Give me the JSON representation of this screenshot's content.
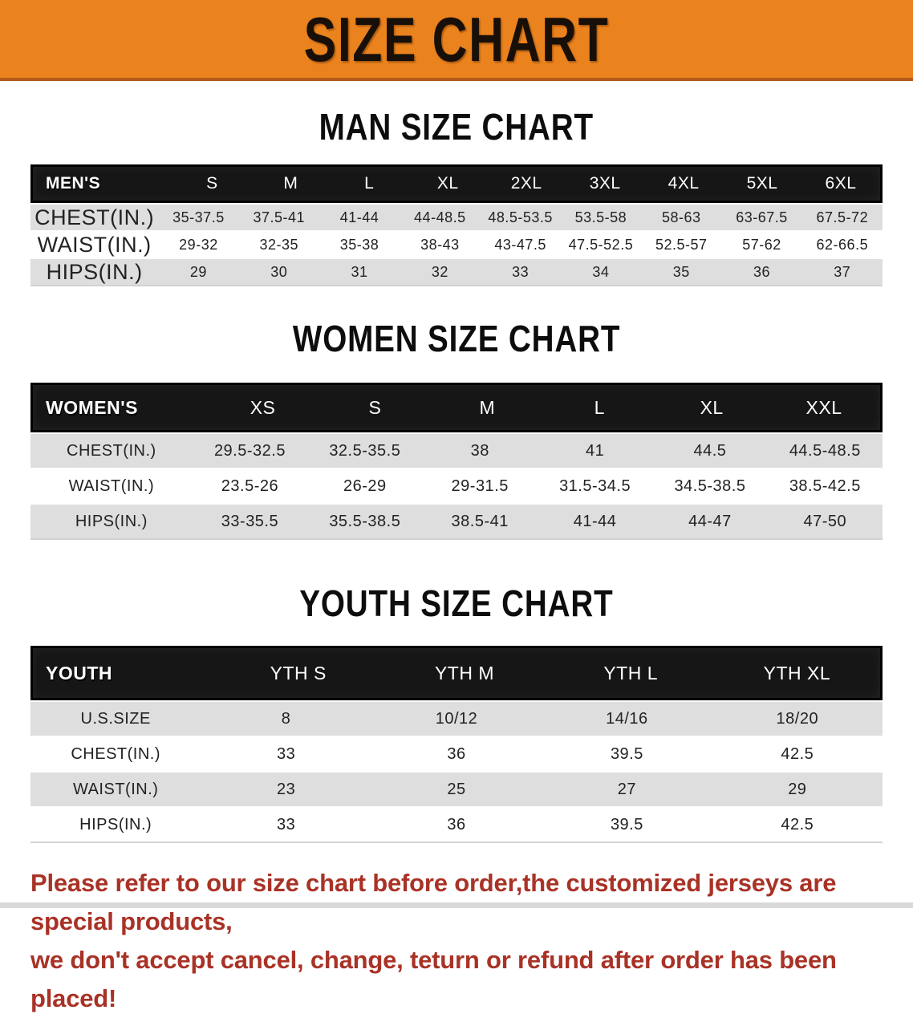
{
  "banner": {
    "title": "SIZE CHART",
    "bg_color": "#ea821e"
  },
  "sections": [
    {
      "id": "men",
      "heading": "MAN SIZE CHART",
      "corner": "MEN'S",
      "columns": [
        "S",
        "M",
        "L",
        "XL",
        "2XL",
        "3XL",
        "4XL",
        "5XL",
        "6XL"
      ],
      "rows": [
        {
          "label": "CHEST(IN.)",
          "values": [
            "35-37.5",
            "37.5-41",
            "41-44",
            "44-48.5",
            "48.5-53.5",
            "53.5-58",
            "58-63",
            "63-67.5",
            "67.5-72"
          ]
        },
        {
          "label": "WAIST(IN.)",
          "values": [
            "29-32",
            "32-35",
            "35-38",
            "38-43",
            "43-47.5",
            "47.5-52.5",
            "52.5-57",
            "57-62",
            "62-66.5"
          ]
        },
        {
          "label": "HIPS(IN.)",
          "values": [
            "29",
            "30",
            "31",
            "32",
            "33",
            "34",
            "35",
            "36",
            "37"
          ]
        }
      ]
    },
    {
      "id": "women",
      "heading": "WOMEN SIZE CHART",
      "corner": "WOMEN'S",
      "columns": [
        "XS",
        "S",
        "M",
        "L",
        "XL",
        "XXL"
      ],
      "rows": [
        {
          "label": "CHEST(IN.)",
          "values": [
            "29.5-32.5",
            "32.5-35.5",
            "38",
            "41",
            "44.5",
            "44.5-48.5"
          ]
        },
        {
          "label": "WAIST(IN.)",
          "values": [
            "23.5-26",
            "26-29",
            "29-31.5",
            "31.5-34.5",
            "34.5-38.5",
            "38.5-42.5"
          ]
        },
        {
          "label": "HIPS(IN.)",
          "values": [
            "33-35.5",
            "35.5-38.5",
            "38.5-41",
            "41-44",
            "44-47",
            "47-50"
          ]
        }
      ]
    },
    {
      "id": "youth",
      "heading": "YOUTH SIZE CHART",
      "corner": "YOUTH",
      "columns": [
        "YTH S",
        "YTH M",
        "YTH L",
        "YTH XL"
      ],
      "rows": [
        {
          "label": "U.S.SIZE",
          "values": [
            "8",
            "10/12",
            "14/16",
            "18/20"
          ]
        },
        {
          "label": "CHEST(IN.)",
          "values": [
            "33",
            "36",
            "39.5",
            "42.5"
          ]
        },
        {
          "label": "WAIST(IN.)",
          "values": [
            "23",
            "25",
            "27",
            "29"
          ]
        },
        {
          "label": "HIPS(IN.)",
          "values": [
            "33",
            "36",
            "39.5",
            "42.5"
          ]
        }
      ]
    }
  ],
  "footer": {
    "line1": "Please refer to our size chart before order,the customized jerseys are special products,",
    "line2": "we don't accept cancel, change, teturn or refund after order has been placed!",
    "text_color": "#a93226"
  }
}
